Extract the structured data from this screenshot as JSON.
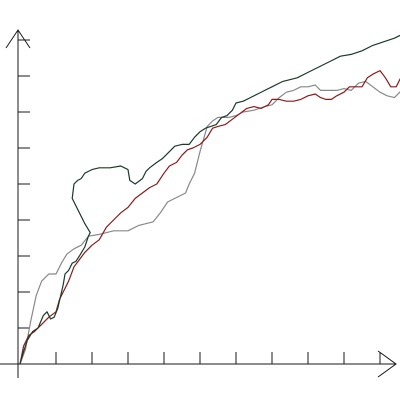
{
  "chart_data": {
    "type": "line",
    "title": "",
    "xlabel": "",
    "ylabel": "",
    "xlim": [
      0,
      10.9
    ],
    "ylim": [
      0,
      9.3
    ],
    "x_ticks": [
      1,
      2,
      3,
      4,
      5,
      6,
      7,
      8,
      9,
      10
    ],
    "y_ticks": [
      1,
      2,
      3,
      4,
      5,
      6,
      7,
      8,
      9
    ],
    "grid": false,
    "legend": "none",
    "series": [
      {
        "color": "#888888",
        "points": [
          [
            0.0,
            0.0
          ],
          [
            0.15,
            0.4
          ],
          [
            0.3,
            1.2
          ],
          [
            0.45,
            1.9
          ],
          [
            0.6,
            2.3
          ],
          [
            0.8,
            2.5
          ],
          [
            1.0,
            2.5
          ],
          [
            1.15,
            2.8
          ],
          [
            1.3,
            3.05
          ],
          [
            1.5,
            3.2
          ],
          [
            1.7,
            3.3
          ],
          [
            1.9,
            3.55
          ],
          [
            2.2,
            3.6
          ],
          [
            2.6,
            3.7
          ],
          [
            3.0,
            3.7
          ],
          [
            3.3,
            3.85
          ],
          [
            3.7,
            3.95
          ],
          [
            3.9,
            4.2
          ],
          [
            4.1,
            4.5
          ],
          [
            4.3,
            4.6
          ],
          [
            4.6,
            4.75
          ],
          [
            4.7,
            5.0
          ],
          [
            4.85,
            5.3
          ],
          [
            5.0,
            5.9
          ],
          [
            5.2,
            6.6
          ],
          [
            5.35,
            6.75
          ],
          [
            5.5,
            6.85
          ],
          [
            5.8,
            6.85
          ],
          [
            6.0,
            6.9
          ],
          [
            6.2,
            7.0
          ],
          [
            6.5,
            7.05
          ],
          [
            6.8,
            7.15
          ],
          [
            7.0,
            7.2
          ],
          [
            7.2,
            7.4
          ],
          [
            7.4,
            7.55
          ],
          [
            7.6,
            7.6
          ],
          [
            7.8,
            7.7
          ],
          [
            8.0,
            7.7
          ],
          [
            8.2,
            7.75
          ],
          [
            8.35,
            7.6
          ],
          [
            8.5,
            7.6
          ],
          [
            8.8,
            7.6
          ],
          [
            9.0,
            7.65
          ],
          [
            9.2,
            7.6
          ],
          [
            9.4,
            7.8
          ],
          [
            9.6,
            7.85
          ],
          [
            9.8,
            7.7
          ],
          [
            10.0,
            7.55
          ],
          [
            10.2,
            7.45
          ],
          [
            10.4,
            7.4
          ],
          [
            10.6,
            7.6
          ],
          [
            10.7,
            7.75
          ],
          [
            10.6,
            7.95
          ],
          [
            10.8,
            8.1
          ],
          [
            11.0,
            7.9
          ]
        ]
      },
      {
        "color": "#8b1a1a",
        "points": [
          [
            0.0,
            0.0
          ],
          [
            0.1,
            0.5
          ],
          [
            0.25,
            0.8
          ],
          [
            0.4,
            0.9
          ],
          [
            0.6,
            1.1
          ],
          [
            0.8,
            1.3
          ],
          [
            1.0,
            1.45
          ],
          [
            1.1,
            1.8
          ],
          [
            1.2,
            2.0
          ],
          [
            1.35,
            2.3
          ],
          [
            1.5,
            2.7
          ],
          [
            1.65,
            2.9
          ],
          [
            1.8,
            3.1
          ],
          [
            2.0,
            3.3
          ],
          [
            2.2,
            3.45
          ],
          [
            2.4,
            3.8
          ],
          [
            2.6,
            4.0
          ],
          [
            2.8,
            4.2
          ],
          [
            3.0,
            4.35
          ],
          [
            3.2,
            4.6
          ],
          [
            3.4,
            4.75
          ],
          [
            3.6,
            4.9
          ],
          [
            3.8,
            5.0
          ],
          [
            4.0,
            5.3
          ],
          [
            4.15,
            5.5
          ],
          [
            4.35,
            5.6
          ],
          [
            4.5,
            5.8
          ],
          [
            4.65,
            5.95
          ],
          [
            4.8,
            6.0
          ],
          [
            5.0,
            6.1
          ],
          [
            5.2,
            6.3
          ],
          [
            5.35,
            6.55
          ],
          [
            5.5,
            6.6
          ],
          [
            5.7,
            6.65
          ],
          [
            5.9,
            6.8
          ],
          [
            6.1,
            6.95
          ],
          [
            6.3,
            7.1
          ],
          [
            6.5,
            7.15
          ],
          [
            6.7,
            7.1
          ],
          [
            6.9,
            7.2
          ],
          [
            7.0,
            7.35
          ],
          [
            7.2,
            7.35
          ],
          [
            7.4,
            7.3
          ],
          [
            7.6,
            7.3
          ],
          [
            7.8,
            7.35
          ],
          [
            8.0,
            7.45
          ],
          [
            8.2,
            7.5
          ],
          [
            8.35,
            7.4
          ],
          [
            8.5,
            7.35
          ],
          [
            8.65,
            7.35
          ],
          [
            8.8,
            7.45
          ],
          [
            9.0,
            7.55
          ],
          [
            9.15,
            7.7
          ],
          [
            9.3,
            7.7
          ],
          [
            9.5,
            7.7
          ],
          [
            9.65,
            7.95
          ],
          [
            9.8,
            8.05
          ],
          [
            10.0,
            8.15
          ],
          [
            10.15,
            7.95
          ],
          [
            10.3,
            7.7
          ],
          [
            10.45,
            7.7
          ],
          [
            10.6,
            8.0
          ],
          [
            10.75,
            8.2
          ],
          [
            10.9,
            8.25
          ]
        ]
      },
      {
        "color": "#1a3a2a",
        "points": [
          [
            0.0,
            0.0
          ],
          [
            0.1,
            0.35
          ],
          [
            0.2,
            0.65
          ],
          [
            0.35,
            0.9
          ],
          [
            0.5,
            1.0
          ],
          [
            0.65,
            1.35
          ],
          [
            0.75,
            1.45
          ],
          [
            0.85,
            1.25
          ],
          [
            0.95,
            1.3
          ],
          [
            1.05,
            1.55
          ],
          [
            1.2,
            2.2
          ],
          [
            1.25,
            2.5
          ],
          [
            1.35,
            2.6
          ],
          [
            1.45,
            2.8
          ],
          [
            1.55,
            2.85
          ],
          [
            1.65,
            3.0
          ],
          [
            1.8,
            3.25
          ],
          [
            1.9,
            3.55
          ],
          [
            1.95,
            3.65
          ],
          [
            1.8,
            3.9
          ],
          [
            1.65,
            4.2
          ],
          [
            1.45,
            4.6
          ],
          [
            1.5,
            5.0
          ],
          [
            1.6,
            5.1
          ],
          [
            1.7,
            5.15
          ],
          [
            1.8,
            5.3
          ],
          [
            1.9,
            5.35
          ],
          [
            2.0,
            5.4
          ],
          [
            2.2,
            5.45
          ],
          [
            2.5,
            5.45
          ],
          [
            2.8,
            5.5
          ],
          [
            3.0,
            5.4
          ],
          [
            3.05,
            5.1
          ],
          [
            3.2,
            5.0
          ],
          [
            3.4,
            5.15
          ],
          [
            3.5,
            5.35
          ],
          [
            3.6,
            5.45
          ],
          [
            3.8,
            5.6
          ],
          [
            3.95,
            5.7
          ],
          [
            4.1,
            5.85
          ],
          [
            4.3,
            6.05
          ],
          [
            4.5,
            6.1
          ],
          [
            4.7,
            6.1
          ],
          [
            4.85,
            6.3
          ],
          [
            5.0,
            6.45
          ],
          [
            5.15,
            6.55
          ],
          [
            5.3,
            6.6
          ],
          [
            5.45,
            6.65
          ],
          [
            5.6,
            6.85
          ],
          [
            5.75,
            6.9
          ],
          [
            5.9,
            7.05
          ],
          [
            6.0,
            7.25
          ],
          [
            6.2,
            7.3
          ],
          [
            6.4,
            7.4
          ],
          [
            6.6,
            7.5
          ],
          [
            6.8,
            7.6
          ],
          [
            7.0,
            7.7
          ],
          [
            7.3,
            7.85
          ],
          [
            7.7,
            7.95
          ],
          [
            8.0,
            8.1
          ],
          [
            8.3,
            8.25
          ],
          [
            8.6,
            8.4
          ],
          [
            8.9,
            8.55
          ],
          [
            9.2,
            8.6
          ],
          [
            9.5,
            8.7
          ],
          [
            9.8,
            8.85
          ],
          [
            10.1,
            8.95
          ],
          [
            10.4,
            9.05
          ],
          [
            10.7,
            9.2
          ],
          [
            10.9,
            9.35
          ]
        ]
      }
    ]
  }
}
